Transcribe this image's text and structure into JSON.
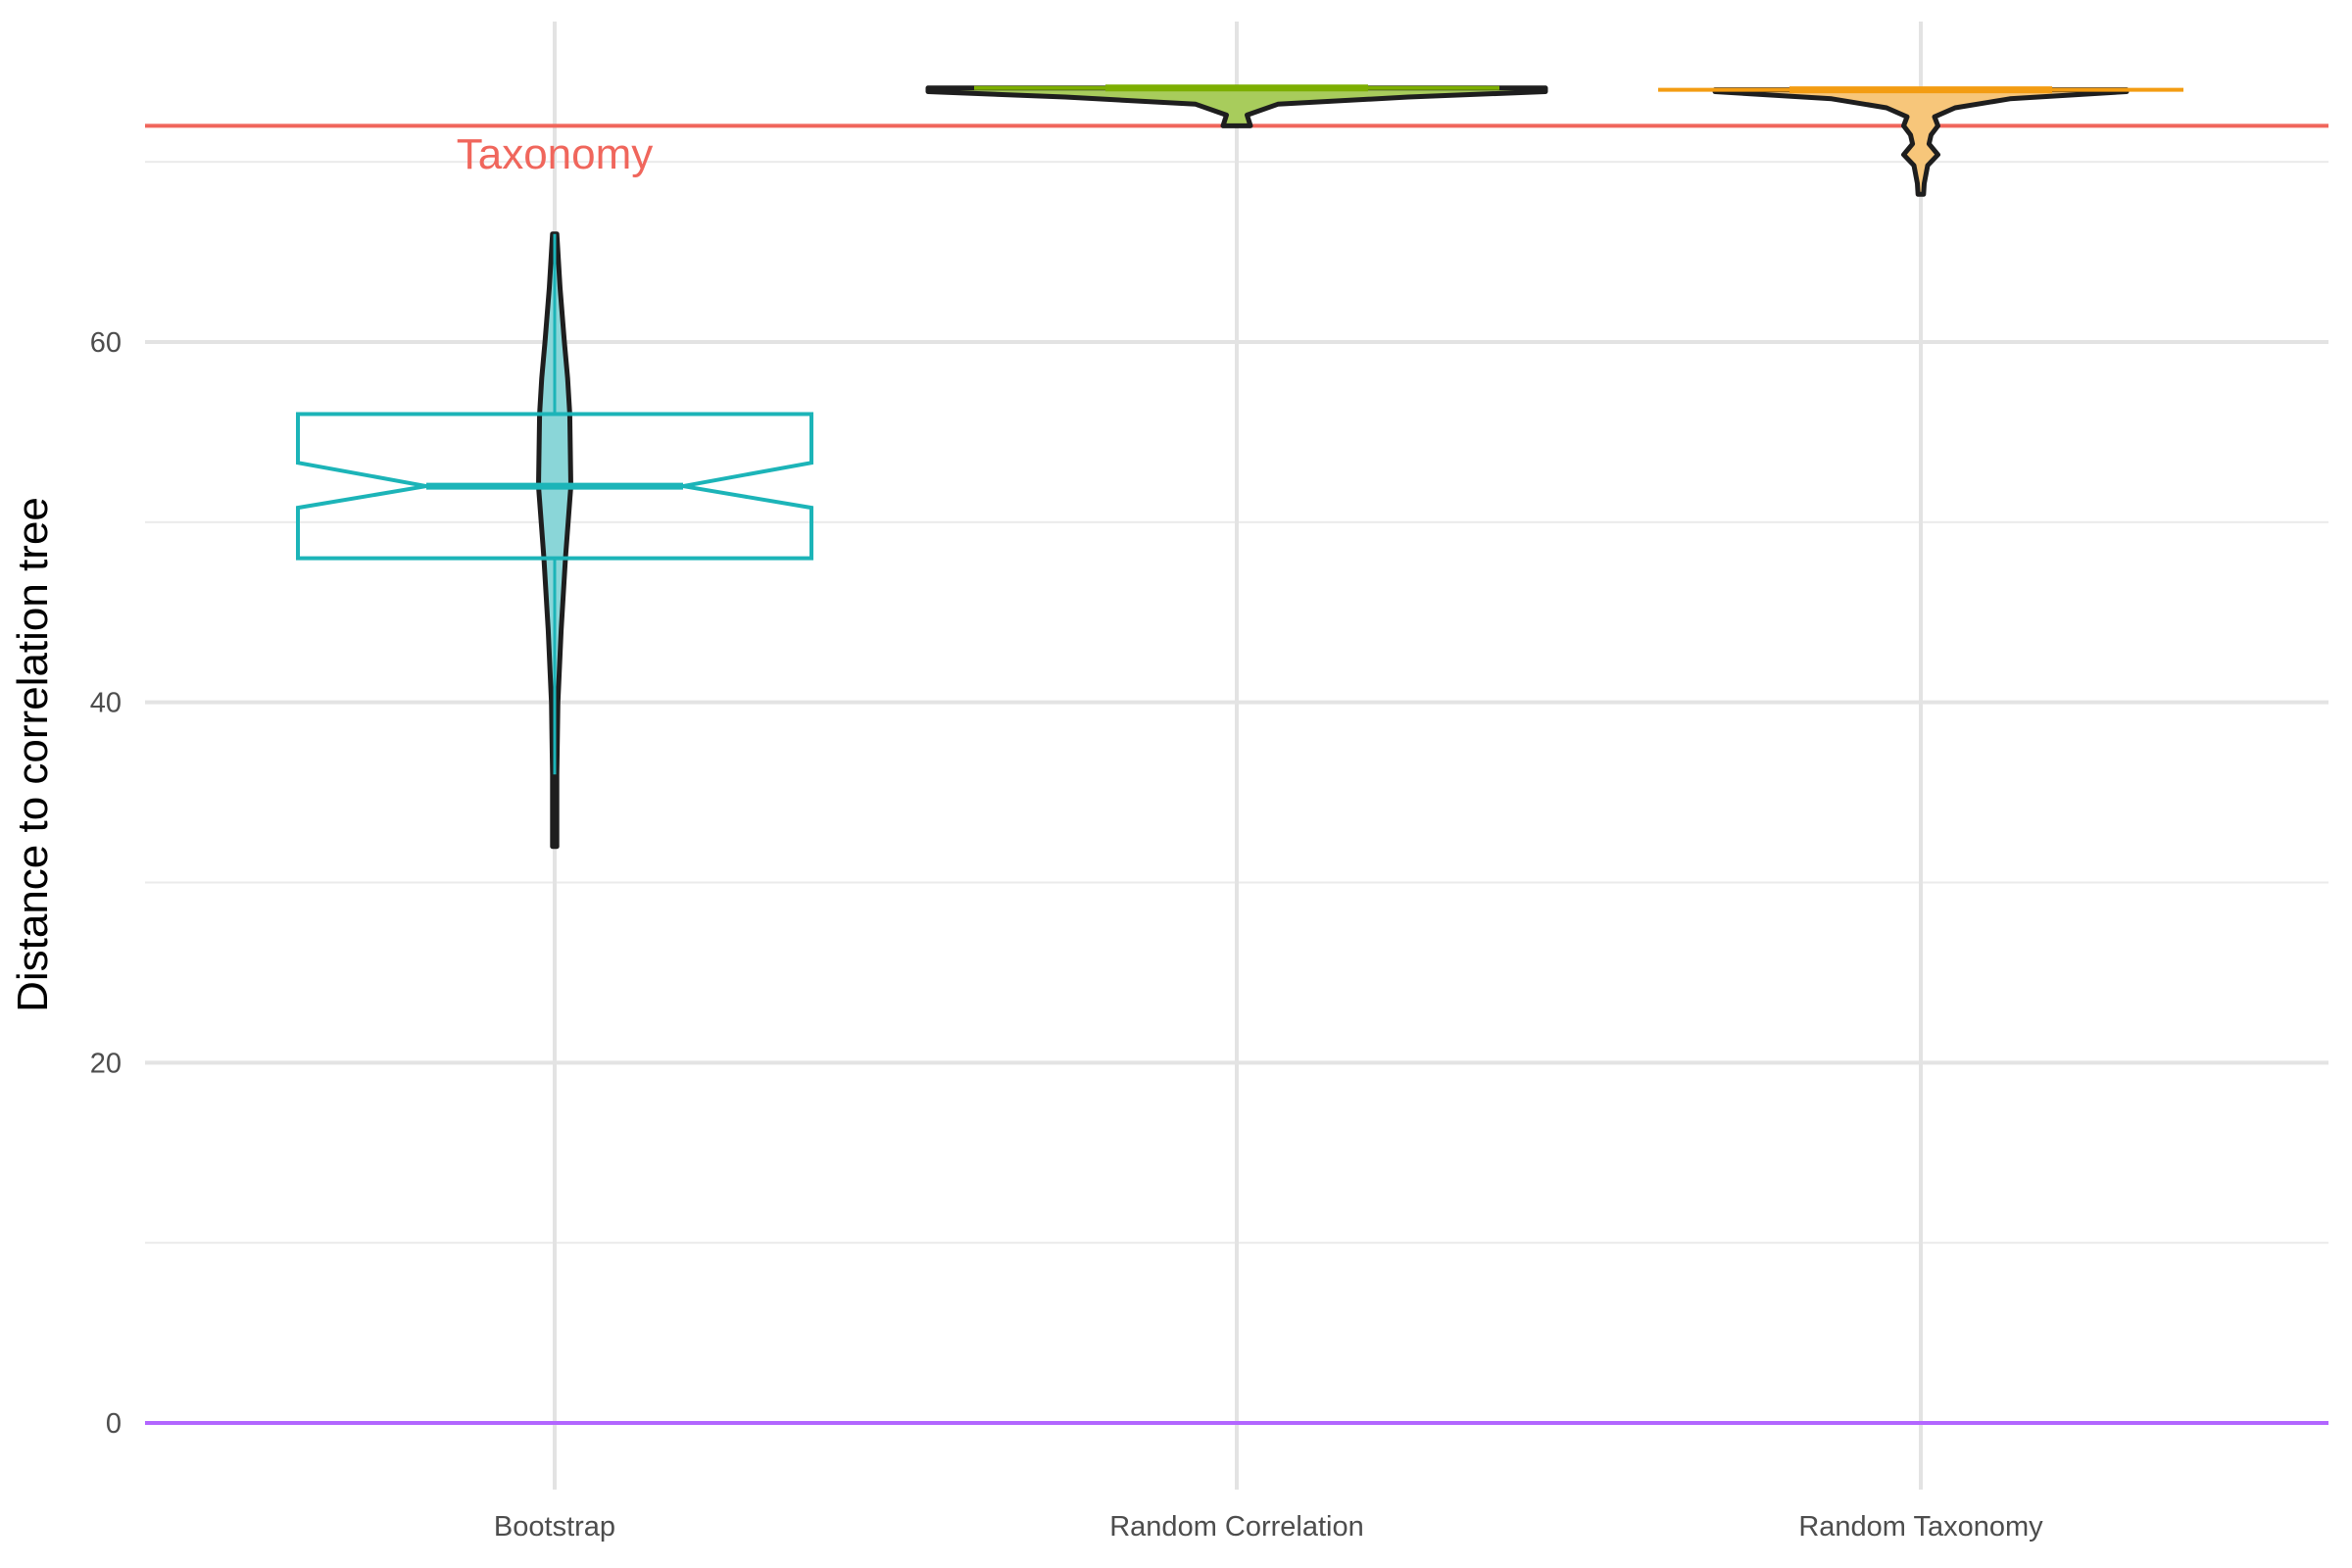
{
  "chart_data": {
    "type": "violin",
    "ylabel": "Distance to correlation tree",
    "xlabel": "",
    "ylim": [
      -3.5,
      78.3
    ],
    "y_major_ticks": [
      0,
      20,
      40,
      60
    ],
    "y_minor_ticks": [
      10,
      30,
      50,
      70
    ],
    "grid": true,
    "categories": [
      "Bootstrap",
      "Random Correlation",
      "Random Taxonomy"
    ],
    "reference_lines": [
      {
        "label": "Taxonomy",
        "value": 72,
        "color": "#f0665c",
        "label_category": "Bootstrap",
        "label_y": 70.4
      },
      {
        "label": "",
        "value": 0,
        "color": "#b266ff"
      }
    ],
    "series": [
      {
        "category": "Bootstrap",
        "color": "#1cb4b8",
        "fill": "#8ad6d8",
        "range": [
          32,
          66
        ],
        "box": {
          "q1": 48,
          "median": 52,
          "q3": 56,
          "notch_low": 50.8,
          "notch_high": 53.3,
          "whisker_low": 36,
          "whisker_high": 66
        },
        "violin": [
          [
            32,
            0.02
          ],
          [
            36,
            0.02
          ],
          [
            40,
            0.03
          ],
          [
            44,
            0.06
          ],
          [
            48,
            0.1
          ],
          [
            52,
            0.15
          ],
          [
            56,
            0.14
          ],
          [
            58,
            0.12
          ],
          [
            60,
            0.09
          ],
          [
            63,
            0.05
          ],
          [
            66,
            0.02
          ]
        ]
      },
      {
        "category": "Random Correlation",
        "color": "#7cae00",
        "fill": "#a8cc5c",
        "range": [
          72,
          74.1
        ],
        "box": {
          "q1": 73.9,
          "median": 74.1,
          "q3": 74.1,
          "whisker_low": 73.8,
          "whisker_high": 74.1
        },
        "violin": [
          [
            72,
            0.2
          ],
          [
            72.6,
            0.15
          ],
          [
            73.2,
            0.6
          ],
          [
            73.6,
            2.5
          ],
          [
            73.9,
            4.5
          ],
          [
            74.1,
            4.5
          ]
        ]
      },
      {
        "category": "Random Taxonomy",
        "color": "#f39c12",
        "fill": "#f7c67a",
        "range": [
          68.2,
          74
        ],
        "box": {
          "q1": 73.9,
          "median": 74,
          "q3": 74,
          "whisker_low": 73.7,
          "whisker_high": 74
        },
        "violin": [
          [
            68.2,
            0.04
          ],
          [
            68.8,
            0.05
          ],
          [
            69.8,
            0.1
          ],
          [
            70.4,
            0.25
          ],
          [
            71.0,
            0.12
          ],
          [
            71.5,
            0.15
          ],
          [
            72.0,
            0.25
          ],
          [
            72.5,
            0.2
          ],
          [
            73.0,
            0.5
          ],
          [
            73.5,
            1.3
          ],
          [
            73.9,
            3.0
          ],
          [
            74.0,
            3.0
          ]
        ]
      }
    ]
  }
}
